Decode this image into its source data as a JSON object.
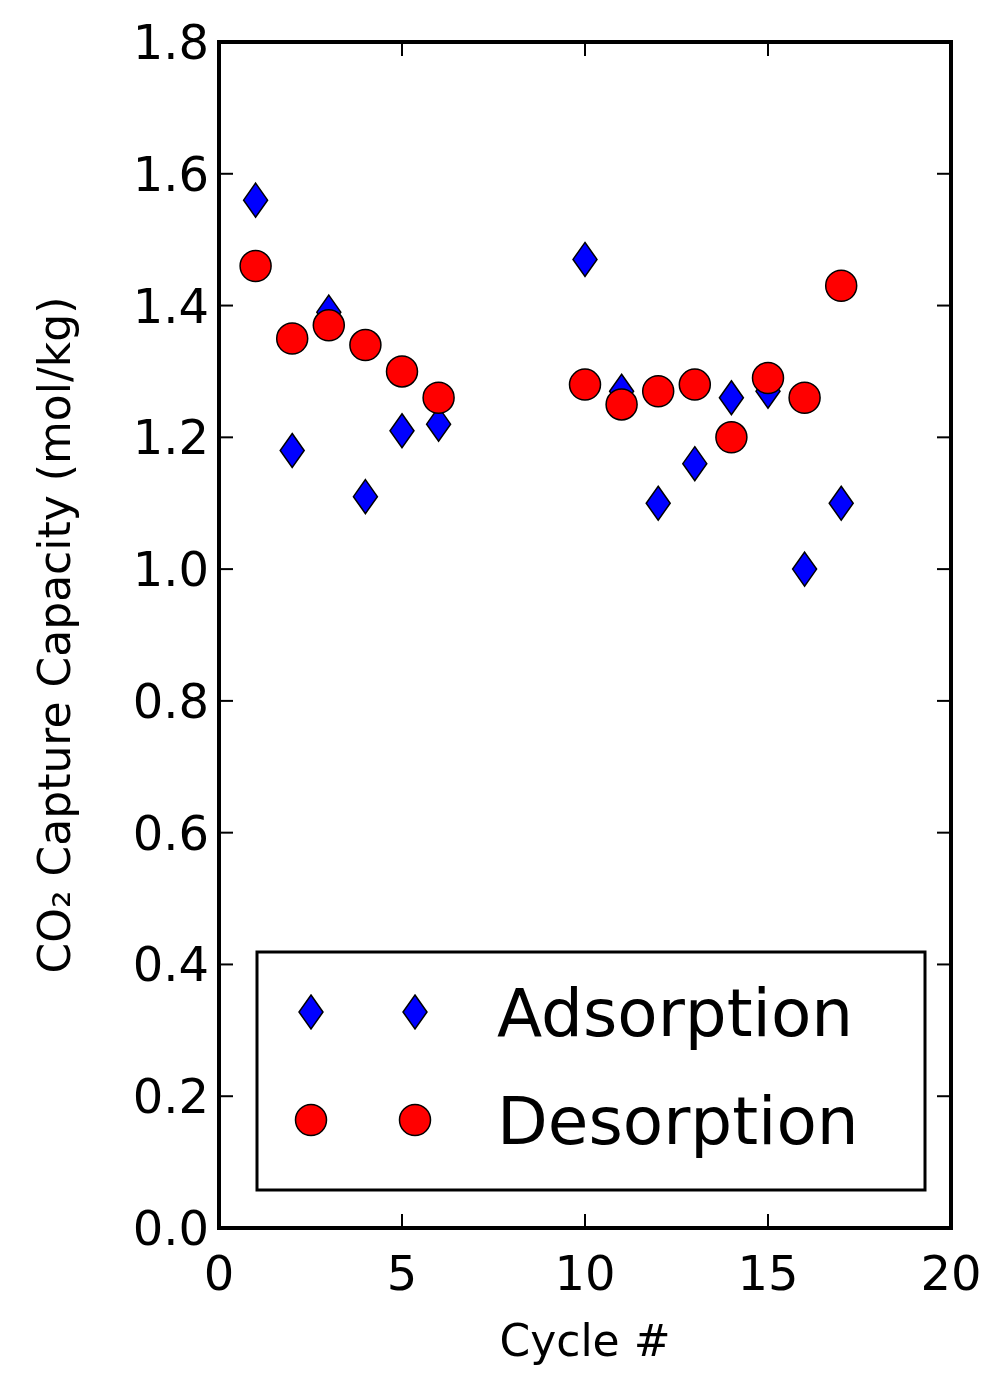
{
  "chart_data": {
    "type": "scatter",
    "xlabel": "Cycle #",
    "ylabel": "CO₂ Capture Capacity (mol/kg)",
    "x": [
      1,
      2,
      3,
      4,
      5,
      6,
      10,
      11,
      12,
      13,
      14,
      15,
      16,
      17
    ],
    "series": [
      {
        "name": "Adsorption",
        "color": "#0000ff",
        "marker": "diamond",
        "values": [
          1.56,
          1.18,
          1.39,
          1.11,
          1.21,
          1.22,
          1.47,
          1.27,
          1.1,
          1.16,
          1.26,
          1.27,
          1.0,
          1.1
        ]
      },
      {
        "name": "Desorption",
        "color": "#ff0000",
        "marker": "circle",
        "values": [
          1.46,
          1.35,
          1.37,
          1.34,
          1.3,
          1.26,
          1.28,
          1.25,
          1.27,
          1.28,
          1.2,
          1.29,
          1.26,
          1.43
        ]
      }
    ],
    "xlim": [
      0,
      20
    ],
    "xticks": [
      0,
      5,
      10,
      15,
      20
    ],
    "ylim": [
      0,
      1.8
    ],
    "yticks": [
      {
        "value": 0,
        "label": "0.0"
      },
      0.2,
      0.4,
      0.6,
      0.8,
      {
        "value": 1,
        "label": "1.0"
      },
      1.2,
      1.4,
      1.6,
      1.8
    ],
    "grid": false,
    "legend": "bottom right"
  }
}
